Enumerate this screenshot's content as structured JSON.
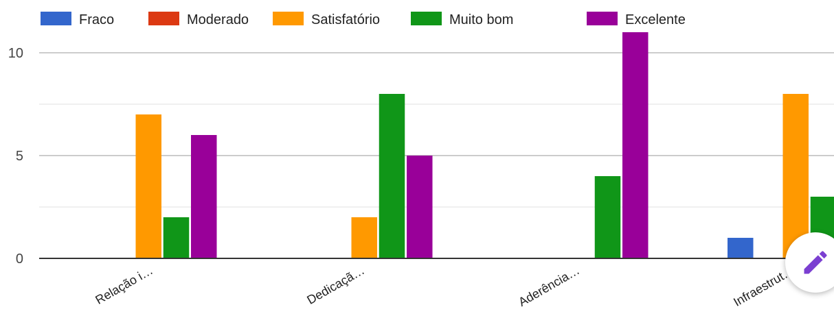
{
  "chart_data": {
    "type": "bar",
    "categories": [
      "Relação i…",
      "Dedicaçã…",
      "Aderência…",
      "Infraestrut…"
    ],
    "series": [
      {
        "name": "Fraco",
        "color": "#3366cc",
        "values": [
          0,
          0,
          0,
          1
        ]
      },
      {
        "name": "Moderado",
        "color": "#dc3912",
        "values": [
          0,
          0,
          0,
          0
        ]
      },
      {
        "name": "Satisfatório",
        "color": "#ff9900",
        "values": [
          7,
          2,
          0,
          8
        ]
      },
      {
        "name": "Muito bom",
        "color": "#109618",
        "values": [
          2,
          8,
          4,
          3
        ]
      },
      {
        "name": "Excelente",
        "color": "#990099",
        "values": [
          6,
          5,
          11,
          0
        ]
      }
    ],
    "yticks": [
      "0",
      "5",
      "10"
    ],
    "ylim": [
      0,
      12
    ],
    "grid": true,
    "legend": "top",
    "title": "",
    "xlabel": "",
    "ylabel": ""
  },
  "fab": {
    "icon": "pencil-icon",
    "color": "#7b3fd1"
  }
}
